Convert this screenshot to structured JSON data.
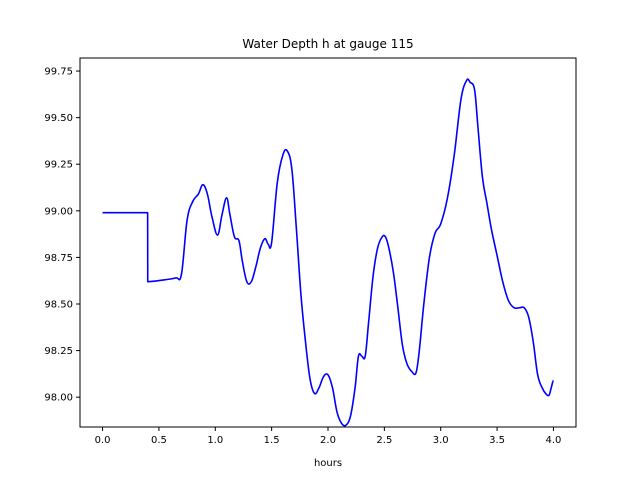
{
  "chart_data": {
    "type": "line",
    "title": "Water Depth h at gauge 115",
    "xlabel": "hours",
    "ylabel": "",
    "xlim": [
      -0.2,
      4.2
    ],
    "ylim": [
      97.84,
      99.82
    ],
    "xticks": [
      0.0,
      0.5,
      1.0,
      1.5,
      2.0,
      2.5,
      3.0,
      3.5,
      4.0
    ],
    "xtick_labels": [
      "0.0",
      "0.5",
      "1.0",
      "1.5",
      "2.0",
      "2.5",
      "3.0",
      "3.5",
      "4.0"
    ],
    "yticks": [
      98.0,
      98.25,
      98.5,
      98.75,
      99.0,
      99.25,
      99.5,
      99.75
    ],
    "ytick_labels": [
      "98.00",
      "98.25",
      "98.50",
      "98.75",
      "99.00",
      "99.25",
      "99.50",
      "99.75"
    ],
    "grid": false,
    "series": [
      {
        "color": "#0000ff",
        "x": [
          0.0,
          0.2,
          0.4,
          0.401,
          0.55,
          0.65,
          0.7,
          0.75,
          0.8,
          0.85,
          0.89,
          0.93,
          0.97,
          1.02,
          1.06,
          1.1,
          1.13,
          1.17,
          1.21,
          1.24,
          1.28,
          1.32,
          1.36,
          1.4,
          1.44,
          1.47,
          1.5,
          1.55,
          1.6,
          1.64,
          1.68,
          1.72,
          1.76,
          1.8,
          1.84,
          1.88,
          1.92,
          1.96,
          2.0,
          2.04,
          2.08,
          2.12,
          2.16,
          2.2,
          2.24,
          2.27,
          2.3,
          2.33,
          2.36,
          2.4,
          2.44,
          2.48,
          2.51,
          2.54,
          2.58,
          2.62,
          2.66,
          2.7,
          2.74,
          2.78,
          2.81,
          2.85,
          2.9,
          2.95,
          3.0,
          3.06,
          3.12,
          3.18,
          3.23,
          3.26,
          3.3,
          3.33,
          3.37,
          3.41,
          3.45,
          3.5,
          3.55,
          3.6,
          3.65,
          3.7,
          3.74,
          3.78,
          3.82,
          3.86,
          3.9,
          3.93,
          3.96,
          3.98,
          4.0
        ],
        "y": [
          98.99,
          98.99,
          98.99,
          98.62,
          98.63,
          98.64,
          98.66,
          98.95,
          99.05,
          99.09,
          99.14,
          99.09,
          98.97,
          98.87,
          98.98,
          99.07,
          98.98,
          98.86,
          98.84,
          98.73,
          98.62,
          98.62,
          98.7,
          98.8,
          98.85,
          98.82,
          98.83,
          99.15,
          99.3,
          99.32,
          99.22,
          98.9,
          98.55,
          98.3,
          98.1,
          98.02,
          98.05,
          98.11,
          98.12,
          98.05,
          97.92,
          97.86,
          97.85,
          97.9,
          98.05,
          98.22,
          98.22,
          98.22,
          98.4,
          98.65,
          98.8,
          98.86,
          98.86,
          98.8,
          98.67,
          98.48,
          98.28,
          98.18,
          98.14,
          98.13,
          98.25,
          98.5,
          98.75,
          98.88,
          98.93,
          99.07,
          99.3,
          99.6,
          99.7,
          99.69,
          99.65,
          99.45,
          99.18,
          99.04,
          98.9,
          98.76,
          98.62,
          98.52,
          98.48,
          98.48,
          98.48,
          98.43,
          98.3,
          98.12,
          98.05,
          98.02,
          98.01,
          98.05,
          98.09
        ]
      }
    ]
  }
}
